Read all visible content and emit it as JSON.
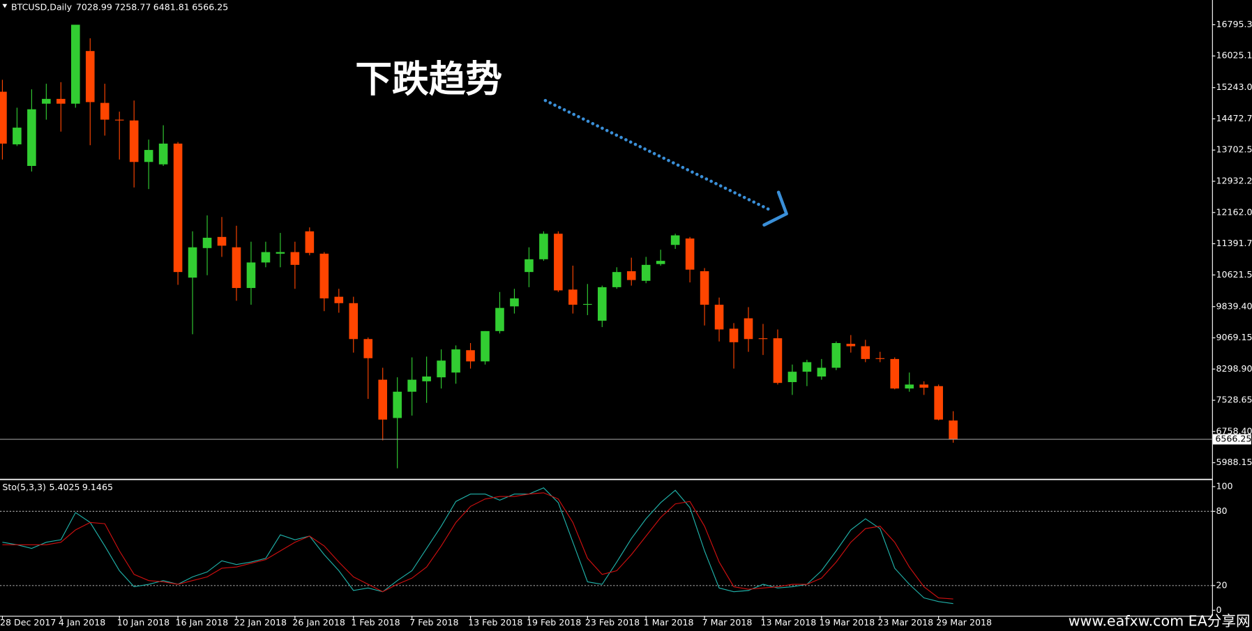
{
  "chart_data": [
    {
      "type": "candlestick",
      "title": "BTCUSD,Daily",
      "annotation": "下跌趋势",
      "categories": [
        "28 Dec 2017",
        null,
        null,
        null,
        "4 Jan 2018",
        null,
        null,
        null,
        "10 Jan 2018",
        null,
        null,
        null,
        "16 Jan 2018",
        null,
        null,
        null,
        "22 Jan 2018",
        null,
        null,
        null,
        "26 Jan 2018",
        null,
        null,
        null,
        "1 Feb 2018",
        null,
        null,
        null,
        "7 Feb 2018",
        null,
        null,
        null,
        "13 Feb 2018",
        null,
        null,
        null,
        "19 Feb 2018",
        null,
        null,
        null,
        "23 Feb 2018",
        null,
        null,
        null,
        "1 Mar 2018",
        null,
        null,
        null,
        "7 Mar 2018",
        null,
        null,
        null,
        "13 Mar 2018",
        null,
        null,
        null,
        "19 Mar 2018",
        null,
        null,
        null,
        "23 Mar 2018",
        null,
        null,
        null,
        "29 Mar 2018",
        null
      ],
      "open": [
        15142,
        13843,
        13311,
        14847,
        14965,
        14847,
        16146,
        14866,
        14453,
        14433,
        13409,
        13350,
        13862,
        10555,
        11284,
        11559,
        11303,
        10299,
        10929,
        11146,
        11185,
        11697,
        11146,
        10083,
        9925,
        9039,
        8036,
        7091,
        7740,
        7997,
        8095,
        8213,
        8764,
        8488,
        9236,
        9846,
        10693,
        11008,
        11638,
        10260,
        9886,
        9492,
        10319,
        10713,
        10476,
        10890,
        11362,
        11520,
        10713,
        9886,
        9295,
        9551,
        9059,
        9059,
        7977,
        8233,
        8115,
        8331,
        8921,
        8862,
        8567,
        8547,
        7819,
        7917,
        7878,
        7028.99
      ],
      "high": [
        15437,
        14748,
        15201,
        15339,
        15378,
        16795,
        16461,
        15339,
        14650,
        14925,
        13961,
        14315,
        13902,
        11697,
        12091,
        12051,
        11835,
        11441,
        11441,
        11658,
        11441,
        11795,
        11185,
        10279,
        10083,
        9079,
        8331,
        8095,
        8587,
        8606,
        8784,
        8882,
        8941,
        9236,
        10201,
        10279,
        11303,
        11697,
        11697,
        10850,
        10398,
        10358,
        10811,
        11047,
        11067,
        11244,
        11638,
        11559,
        10791,
        10063,
        9433,
        9827,
        9413,
        9276,
        8410,
        8528,
        8547,
        8980,
        9138,
        9020,
        8724,
        8587,
        8213,
        7997,
        7917,
        7258.77
      ],
      "low": [
        13469,
        13803,
        13173,
        14453,
        14158,
        14748,
        13823,
        14059,
        13469,
        12780,
        12740,
        13311,
        10378,
        9157,
        10614,
        11067,
        9984,
        9886,
        10811,
        10811,
        10279,
        11106,
        9728,
        9689,
        8705,
        7563,
        6539,
        5850,
        7150,
        7465,
        7819,
        7937,
        8311,
        8410,
        9177,
        9669,
        10319,
        10969,
        10201,
        9669,
        9630,
        9335,
        10279,
        10358,
        10417,
        10850,
        11264,
        10437,
        9374,
        8980,
        8311,
        8724,
        8646,
        7917,
        7661,
        7878,
        8036,
        8272,
        8705,
        8469,
        8469,
        7799,
        7740,
        7661,
        7032,
        6481.81
      ],
      "close": [
        13862,
        14256,
        14709,
        14965,
        14847,
        16795,
        14886,
        14453,
        14433,
        13409,
        13705,
        13862,
        10693,
        11303,
        11539,
        11343,
        10299,
        10929,
        11185,
        11185,
        10870,
        11165,
        10043,
        9925,
        9039,
        8567,
        7052,
        7740,
        8036,
        8115,
        8508,
        8784,
        8488,
        9236,
        9807,
        10043,
        11008,
        11638,
        10240,
        9886,
        9905,
        10319,
        10693,
        10496,
        10870,
        10969,
        11598,
        10752,
        9886,
        9276,
        8961,
        9039,
        9039,
        7957,
        8233,
        8469,
        8331,
        8941,
        8862,
        8547,
        8547,
        7819,
        7917,
        7839,
        7052,
        6566.25
      ],
      "up_color": "#32cd32",
      "down_color": "#ff4500",
      "ylim": [
        5595,
        17366
      ],
      "yticks": [
        16795.35,
        {
          "value": 16025.1,
          "label": "16025.10"
        },
        {
          "value": 15243,
          "label": "15243.00"
        },
        14472.75,
        {
          "value": 13702.5,
          "label": "13702.50"
        },
        12932.25,
        {
          "value": 12162,
          "label": "12162.00"
        },
        11391.75,
        {
          "value": 10621.5,
          "label": "10621.50"
        },
        {
          "value": 9839.4,
          "label": "9839.40"
        },
        9069.15,
        {
          "value": 8298.9,
          "label": "8298.90"
        },
        7528.65,
        {
          "value": 6758.4,
          "label": "6758.40"
        },
        5988.15
      ]
    },
    {
      "type": "line",
      "title": "Sto(5,3,3)",
      "series": [
        {
          "color": "#20b2aa",
          "values": [
            55,
            53,
            50,
            55,
            57,
            79,
            71,
            52,
            32,
            19,
            21,
            24,
            21,
            27,
            31,
            40,
            37,
            39,
            42,
            61,
            57,
            60,
            45,
            32,
            16,
            18,
            15,
            24,
            32,
            50,
            68,
            88,
            94,
            94,
            89,
            94,
            94,
            99,
            87,
            55,
            23,
            21,
            39,
            58,
            74,
            87,
            97,
            83,
            48,
            18,
            15,
            16,
            21,
            18,
            19,
            21,
            32,
            48,
            65,
            74,
            66,
            34,
            21,
            10,
            7,
            5.4025
          ]
        },
        {
          "color": "#d01010",
          "values": [
            53,
            53,
            53,
            53,
            55,
            65,
            71,
            70,
            48,
            29,
            24,
            23,
            21,
            24,
            27,
            34,
            35,
            38,
            41,
            48,
            55,
            60,
            52,
            39,
            27,
            21,
            15,
            21,
            26,
            35,
            52,
            71,
            84,
            90,
            92,
            92,
            94,
            95,
            90,
            71,
            42,
            29,
            32,
            45,
            60,
            75,
            86,
            88,
            68,
            39,
            19,
            17,
            18,
            19,
            21,
            21,
            26,
            39,
            55,
            66,
            68,
            55,
            35,
            19,
            10,
            9.1465
          ]
        }
      ],
      "ylim": [
        0,
        100
      ],
      "yticks": [
        100,
        80,
        20,
        0
      ],
      "levels": [
        80,
        20
      ]
    }
  ],
  "watermark": "www.eafxw.com EA分享网"
}
